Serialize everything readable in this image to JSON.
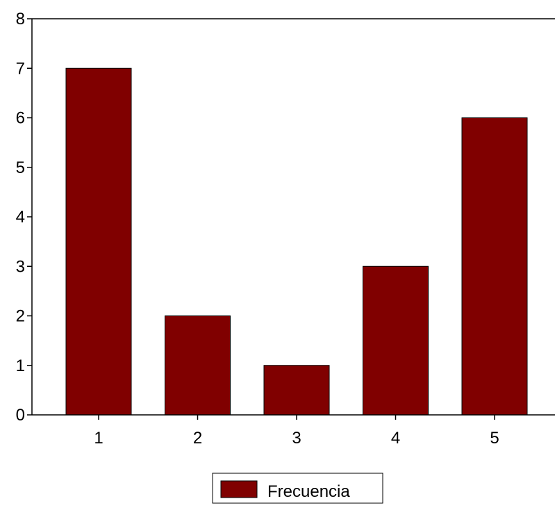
{
  "chart_data": {
    "type": "bar",
    "categories": [
      "1",
      "2",
      "3",
      "4",
      "5"
    ],
    "series": [
      {
        "name": "Frecuencia",
        "values": [
          7,
          2,
          1,
          3,
          6
        ],
        "color": "#800000"
      }
    ],
    "title": "",
    "xlabel": "",
    "ylabel": "",
    "ylim": [
      0,
      8
    ],
    "yticks": [
      "0",
      "1",
      "2",
      "3",
      "4",
      "5",
      "6",
      "7",
      "8"
    ],
    "grid": false,
    "legend_position": "bottom-center"
  }
}
